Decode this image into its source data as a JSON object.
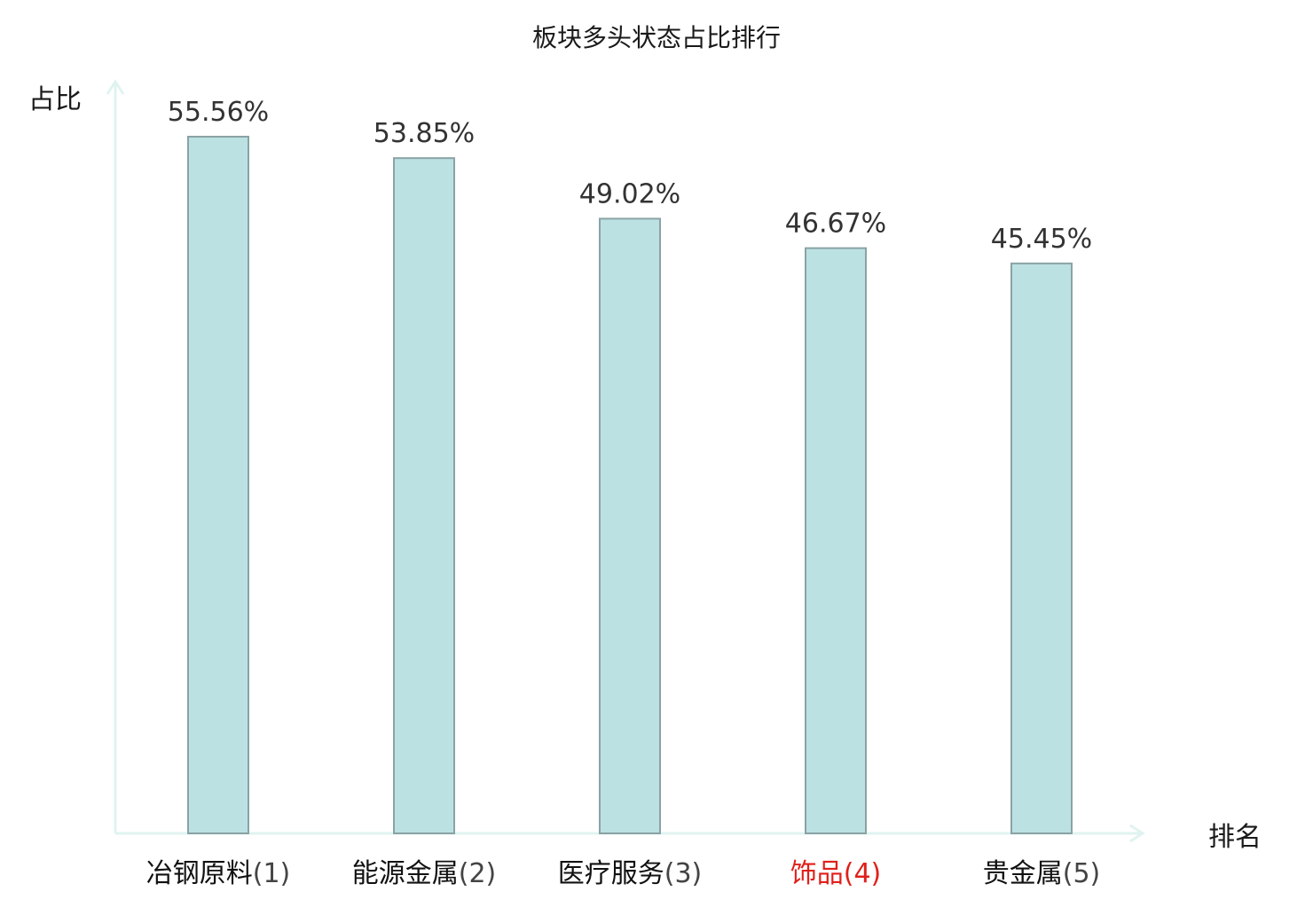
{
  "chart_data": {
    "type": "bar",
    "title": "板块多头状态占比排行",
    "ylabel": "占比",
    "xlabel": "排名",
    "categories": [
      "冶钢原料",
      "能源金属",
      "医疗服务",
      "饰品",
      "贵金属"
    ],
    "ranks": [
      "(1)",
      "(2)",
      "(3)",
      "(4)",
      "(5)"
    ],
    "values": [
      55.56,
      53.85,
      49.02,
      46.67,
      45.45
    ],
    "value_labels": [
      "55.56%",
      "53.85%",
      "49.02%",
      "46.67%",
      "45.45%"
    ],
    "ylim": [
      0,
      60
    ],
    "highlight_index": 3,
    "grid": false,
    "colors": {
      "bar_fill": "#bce1e3",
      "bar_stroke": "#8aa3a5",
      "axis": "#e0f3f0",
      "highlight": "#e0201a",
      "category_text": "#111111",
      "rank_text": "#444444"
    }
  }
}
